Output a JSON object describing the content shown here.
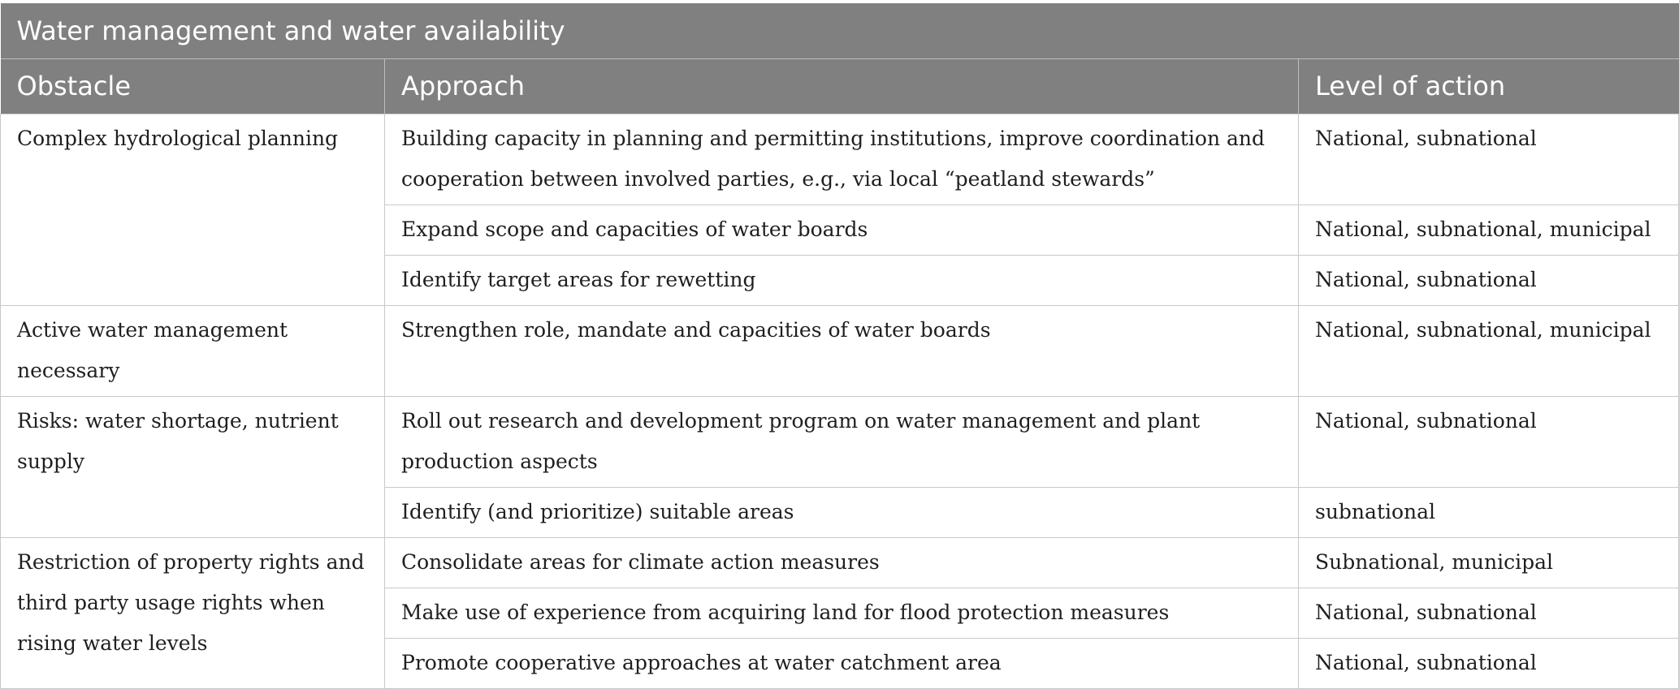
{
  "table": {
    "title": "Water management and water availability",
    "headers": {
      "obstacle": "Obstacle",
      "approach": "Approach",
      "level": "Level of action"
    },
    "groups": [
      {
        "obstacle": "Complex hydrological planning",
        "rows": [
          {
            "approach": "Building capacity in planning and permitting institutions, improve coordination and cooperation between involved parties, e.g., via local “peatland stewards”",
            "level": "National, subnational"
          },
          {
            "approach": "Expand scope and capacities of water boards",
            "level": "National, subnational, municipal"
          },
          {
            "approach": "Identify target areas for rewetting",
            "level": "National, subnational"
          }
        ]
      },
      {
        "obstacle": "Active water management necessary",
        "rows": [
          {
            "approach": "Strengthen role, mandate and capacities of water boards",
            "level": "National, subnational, municipal"
          }
        ]
      },
      {
        "obstacle": "Risks: water shortage, nutrient supply",
        "rows": [
          {
            "approach": "Roll out research and development program on water management and plant production aspects",
            "level": "National, subnational"
          },
          {
            "approach": "Identify (and prioritize) suitable areas",
            "level": "subnational"
          }
        ]
      },
      {
        "obstacle": "Restriction of property rights and third party usage rights when rising water levels",
        "rows": [
          {
            "approach": "Consolidate areas for climate action measures",
            "level": "Subnational, municipal"
          },
          {
            "approach": "Make use of experience from acquiring land for flood protection measures",
            "level": "National, subnational"
          },
          {
            "approach": "Promote cooperative approaches at water catchment area",
            "level": "National, subnational"
          }
        ]
      }
    ]
  }
}
